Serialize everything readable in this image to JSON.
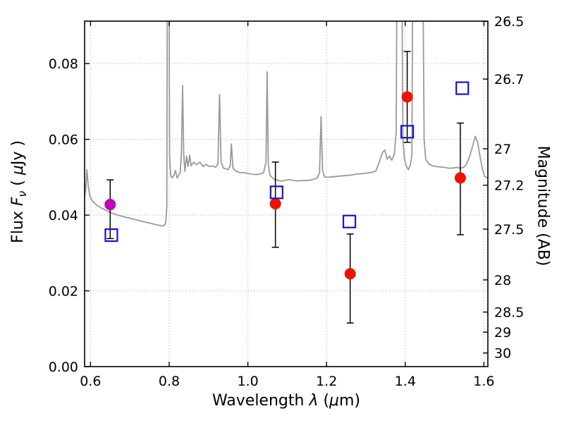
{
  "axes": {
    "xlabel_parts": [
      {
        "t": "Wavelength  ",
        "i": 0
      },
      {
        "t": "λ",
        "i": 1
      },
      {
        "t": " (",
        "i": 0
      },
      {
        "t": "μ",
        "i": 1
      },
      {
        "t": "m)",
        "i": 0
      }
    ],
    "ylabel_left_parts": [
      {
        "t": "Flux  ",
        "i": 0
      },
      {
        "t": "F",
        "i": 1
      },
      {
        "t": "ν",
        "i": 1,
        "s": 1
      },
      {
        "t": "  ( ",
        "i": 0
      },
      {
        "t": "μ",
        "i": 1
      },
      {
        "t": "Jy )",
        "i": 0
      }
    ],
    "ylabel_right": "Magnitude (AB)"
  },
  "style": {
    "spectrum_color": "#9a9a9a",
    "red_color": "#ee1100",
    "magenta_color": "#bf00bf",
    "blue_color": "#1414cc",
    "errorbar_color": "#000000",
    "grid_color": "#9c9c9c",
    "spine_color": "#000000"
  },
  "chart_data": {
    "type": "line",
    "title": "",
    "xlabel": "Wavelength lambda (um)",
    "ylabel": "Flux F_nu (uJy)",
    "ylabel_right": "Magnitude (AB)",
    "xlim": [
      0.585,
      1.61
    ],
    "ylim": [
      0.0,
      0.0912
    ],
    "grid": true,
    "x_ticks": [
      0.6,
      0.8,
      1.0,
      1.2,
      1.4,
      1.6
    ],
    "x_tick_labels": [
      "0.6",
      "0.8",
      "1.0",
      "1.2",
      "1.4",
      "1.6"
    ],
    "y_ticks_left": [
      0.0,
      0.02,
      0.04,
      0.06,
      0.08
    ],
    "y_tick_labels_left": [
      "0.00",
      "0.02",
      "0.04",
      "0.06",
      "0.08"
    ],
    "y_ticks_right": [
      {
        "label": "26.5",
        "flux": 0.0912
      },
      {
        "label": "26.7",
        "flux": 0.0759
      },
      {
        "label": "27",
        "flux": 0.0575
      },
      {
        "label": "27.2",
        "flux": 0.0479
      },
      {
        "label": "27.5",
        "flux": 0.0363
      },
      {
        "label": "28",
        "flux": 0.0229
      },
      {
        "label": "28.5",
        "flux": 0.0144
      },
      {
        "label": "29",
        "flux": 0.0091
      },
      {
        "label": "30",
        "flux": 0.0036
      }
    ],
    "series": [
      {
        "name": "model-spectrum",
        "type": "line",
        "color": "#9a9a9a",
        "points": [
          [
            0.585,
            0.045
          ],
          [
            0.588,
            0.047
          ],
          [
            0.591,
            0.052
          ],
          [
            0.594,
            0.048
          ],
          [
            0.598,
            0.045
          ],
          [
            0.605,
            0.0437
          ],
          [
            0.615,
            0.0427
          ],
          [
            0.625,
            0.042
          ],
          [
            0.64,
            0.0412
          ],
          [
            0.655,
            0.0405
          ],
          [
            0.67,
            0.04
          ],
          [
            0.69,
            0.0394
          ],
          [
            0.71,
            0.0389
          ],
          [
            0.73,
            0.0384
          ],
          [
            0.75,
            0.0379
          ],
          [
            0.77,
            0.0374
          ],
          [
            0.785,
            0.0371
          ],
          [
            0.791,
            0.0378
          ],
          [
            0.794,
            0.042
          ],
          [
            0.796,
            0.13
          ],
          [
            0.799,
            0.13
          ],
          [
            0.801,
            0.056
          ],
          [
            0.804,
            0.0505
          ],
          [
            0.808,
            0.0498
          ],
          [
            0.812,
            0.0505
          ],
          [
            0.816,
            0.0518
          ],
          [
            0.82,
            0.0498
          ],
          [
            0.824,
            0.0505
          ],
          [
            0.828,
            0.0512
          ],
          [
            0.831,
            0.056
          ],
          [
            0.834,
            0.0742
          ],
          [
            0.837,
            0.056
          ],
          [
            0.84,
            0.0515
          ],
          [
            0.844,
            0.0555
          ],
          [
            0.848,
            0.0528
          ],
          [
            0.852,
            0.0558
          ],
          [
            0.856,
            0.053
          ],
          [
            0.862,
            0.054
          ],
          [
            0.87,
            0.0533
          ],
          [
            0.878,
            0.054
          ],
          [
            0.886,
            0.0528
          ],
          [
            0.894,
            0.0534
          ],
          [
            0.902,
            0.0528
          ],
          [
            0.91,
            0.053
          ],
          [
            0.918,
            0.0526
          ],
          [
            0.924,
            0.0535
          ],
          [
            0.928,
            0.0718
          ],
          [
            0.932,
            0.054
          ],
          [
            0.938,
            0.0524
          ],
          [
            0.944,
            0.0522
          ],
          [
            0.95,
            0.052
          ],
          [
            0.955,
            0.053
          ],
          [
            0.958,
            0.0588
          ],
          [
            0.962,
            0.0524
          ],
          [
            0.97,
            0.0516
          ],
          [
            0.98,
            0.0512
          ],
          [
            0.99,
            0.0512
          ],
          [
            1.0,
            0.051
          ],
          [
            1.01,
            0.0508
          ],
          [
            1.02,
            0.0507
          ],
          [
            1.03,
            0.0508
          ],
          [
            1.04,
            0.0512
          ],
          [
            1.046,
            0.054
          ],
          [
            1.049,
            0.0778
          ],
          [
            1.052,
            0.0535
          ],
          [
            1.056,
            0.0505
          ],
          [
            1.065,
            0.0496
          ],
          [
            1.075,
            0.0492
          ],
          [
            1.085,
            0.049
          ],
          [
            1.095,
            0.0492
          ],
          [
            1.105,
            0.0494
          ],
          [
            1.115,
            0.0492
          ],
          [
            1.125,
            0.049
          ],
          [
            1.135,
            0.0491
          ],
          [
            1.145,
            0.0491
          ],
          [
            1.155,
            0.0492
          ],
          [
            1.165,
            0.0494
          ],
          [
            1.175,
            0.0497
          ],
          [
            1.182,
            0.051
          ],
          [
            1.186,
            0.066
          ],
          [
            1.19,
            0.0515
          ],
          [
            1.196,
            0.05
          ],
          [
            1.205,
            0.05
          ],
          [
            1.215,
            0.0501
          ],
          [
            1.225,
            0.0502
          ],
          [
            1.235,
            0.0503
          ],
          [
            1.245,
            0.0504
          ],
          [
            1.255,
            0.0505
          ],
          [
            1.265,
            0.0506
          ],
          [
            1.275,
            0.0508
          ],
          [
            1.285,
            0.0509
          ],
          [
            1.295,
            0.051
          ],
          [
            1.305,
            0.0511
          ],
          [
            1.315,
            0.0513
          ],
          [
            1.325,
            0.0516
          ],
          [
            1.335,
            0.0542
          ],
          [
            1.342,
            0.0565
          ],
          [
            1.348,
            0.0572
          ],
          [
            1.354,
            0.0548
          ],
          [
            1.36,
            0.0556
          ],
          [
            1.366,
            0.0545
          ],
          [
            1.372,
            0.056
          ],
          [
            1.377,
            0.062
          ],
          [
            1.38,
            0.13
          ],
          [
            1.39,
            0.13
          ],
          [
            1.394,
            0.06
          ],
          [
            1.398,
            0.0548
          ],
          [
            1.403,
            0.0528
          ],
          [
            1.408,
            0.052
          ],
          [
            1.413,
            0.0532
          ],
          [
            1.417,
            0.056
          ],
          [
            1.42,
            0.13
          ],
          [
            1.443,
            0.13
          ],
          [
            1.448,
            0.06
          ],
          [
            1.452,
            0.0548
          ],
          [
            1.46,
            0.0535
          ],
          [
            1.47,
            0.053
          ],
          [
            1.48,
            0.0528
          ],
          [
            1.49,
            0.0527
          ],
          [
            1.5,
            0.0526
          ],
          [
            1.51,
            0.0524
          ],
          [
            1.52,
            0.0524
          ],
          [
            1.53,
            0.0526
          ],
          [
            1.54,
            0.0524
          ],
          [
            1.548,
            0.0526
          ],
          [
            1.556,
            0.0535
          ],
          [
            1.564,
            0.0556
          ],
          [
            1.572,
            0.0585
          ],
          [
            1.578,
            0.0608
          ],
          [
            1.584,
            0.0592
          ],
          [
            1.59,
            0.0556
          ],
          [
            1.596,
            0.0522
          ],
          [
            1.602,
            0.0502
          ],
          [
            1.61,
            0.0498
          ]
        ]
      },
      {
        "name": "photometry-magenta",
        "type": "scatter",
        "marker": "circle",
        "color": "#bf00bf",
        "points": [
          {
            "x": 0.65,
            "y": 0.0428,
            "lo": 0.009,
            "hi": 0.0065
          }
        ]
      },
      {
        "name": "photometry-red",
        "type": "scatter",
        "marker": "circle",
        "color": "#ee1100",
        "points": [
          {
            "x": 1.07,
            "y": 0.043,
            "lo": 0.0115,
            "hi": 0.011
          },
          {
            "x": 1.26,
            "y": 0.0245,
            "lo": 0.013,
            "hi": 0.0105
          },
          {
            "x": 1.405,
            "y": 0.0712,
            "lo": 0.012,
            "hi": 0.012
          },
          {
            "x": 1.54,
            "y": 0.0498,
            "lo": 0.015,
            "hi": 0.0145
          }
        ]
      },
      {
        "name": "photometry-blue-squares",
        "type": "scatter",
        "marker": "open-square",
        "color": "#1414cc",
        "points": [
          {
            "x": 0.653,
            "y": 0.0347
          },
          {
            "x": 1.073,
            "y": 0.046
          },
          {
            "x": 1.258,
            "y": 0.0383
          },
          {
            "x": 1.405,
            "y": 0.062
          },
          {
            "x": 1.545,
            "y": 0.0735
          }
        ]
      }
    ],
    "legend": null
  }
}
